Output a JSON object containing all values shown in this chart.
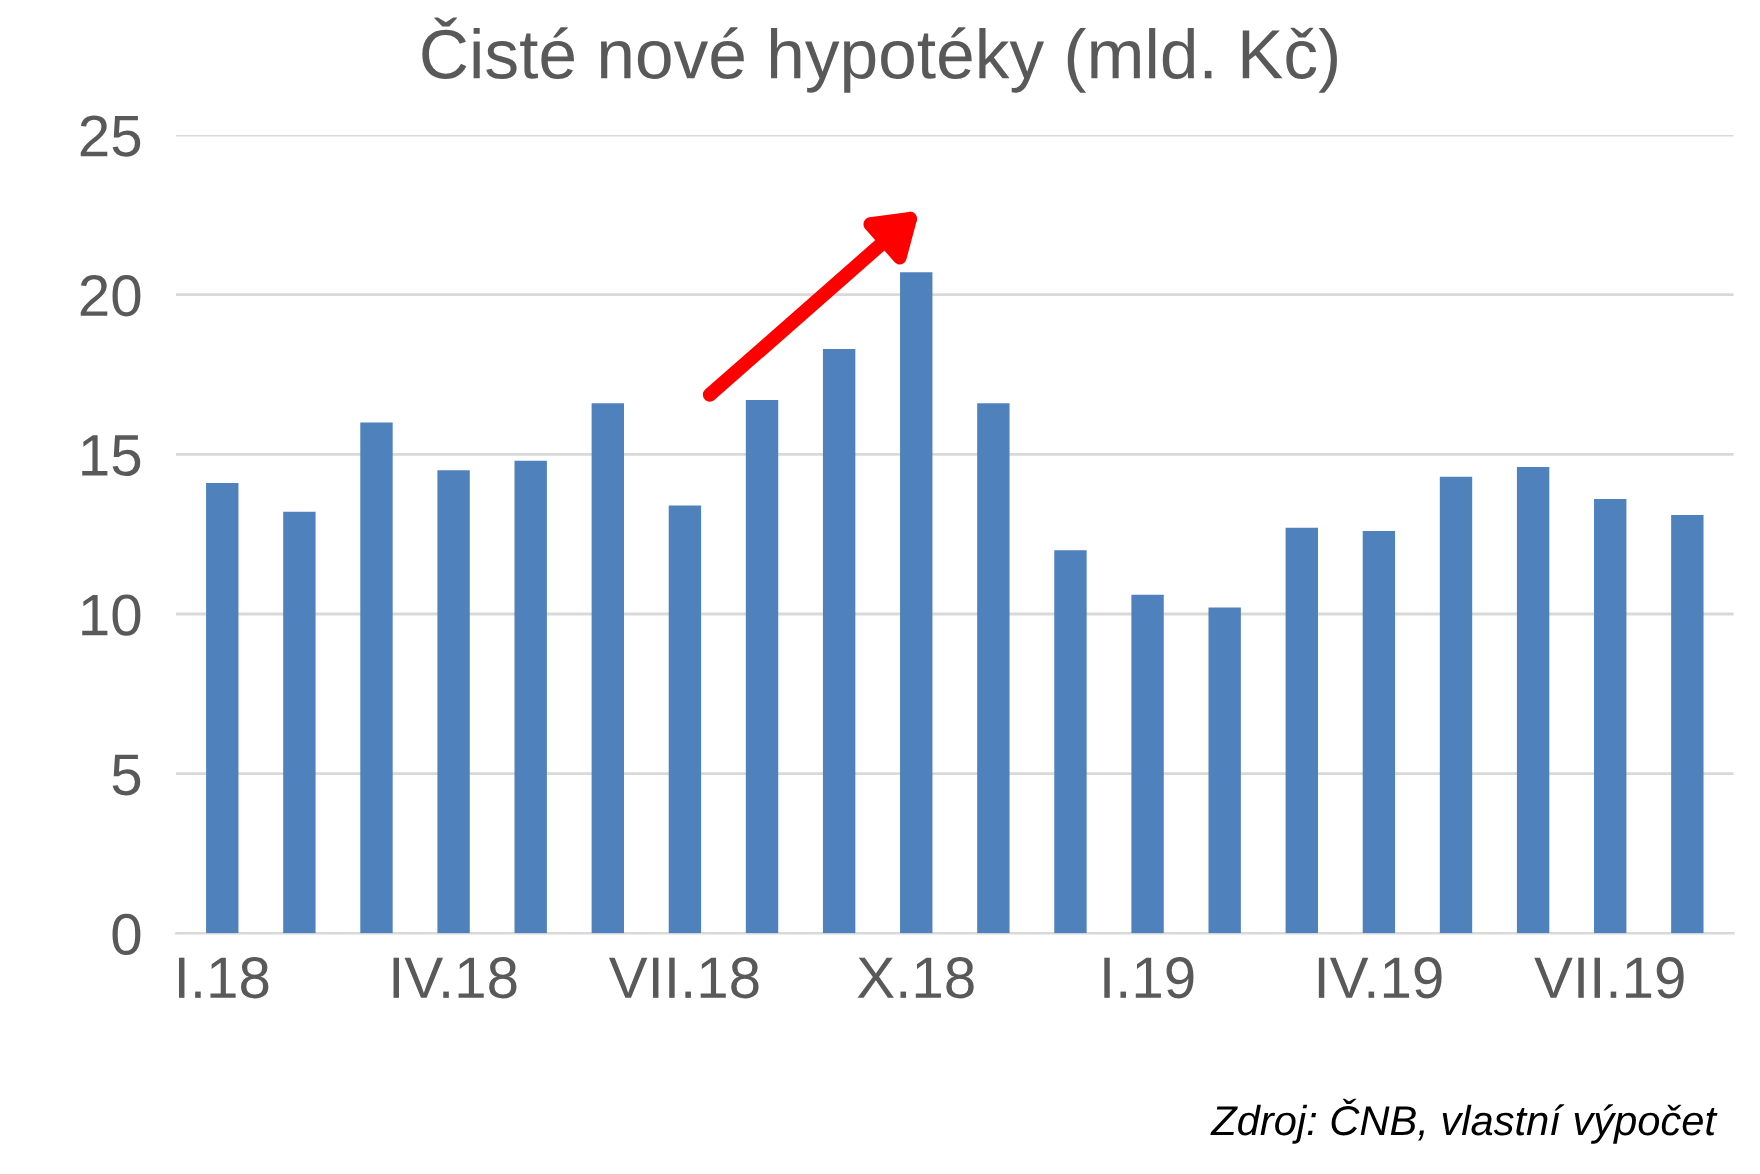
{
  "chart_data": {
    "type": "bar",
    "title": "Čisté nové hypotéky (mld. Kč)",
    "categories": [
      "I.18",
      null,
      null,
      "IV.18",
      null,
      null,
      "VII.18",
      null,
      null,
      "X.18",
      null,
      null,
      "I.19",
      null,
      null,
      "IV.19",
      null,
      null,
      "VII.19",
      null
    ],
    "values": [
      14.1,
      13.2,
      16.0,
      14.5,
      14.8,
      16.6,
      13.4,
      16.7,
      18.3,
      20.7,
      16.6,
      12.0,
      10.6,
      10.2,
      12.7,
      12.6,
      14.3,
      14.6,
      13.6,
      13.1
    ],
    "color": "#4f81bd",
    "ylim": [
      0,
      25
    ],
    "yticks": [
      0,
      5,
      10,
      15,
      20,
      25
    ],
    "grid": "y",
    "annotations": [
      "Zdroj: ČNB, vlastní výpočet"
    ]
  }
}
